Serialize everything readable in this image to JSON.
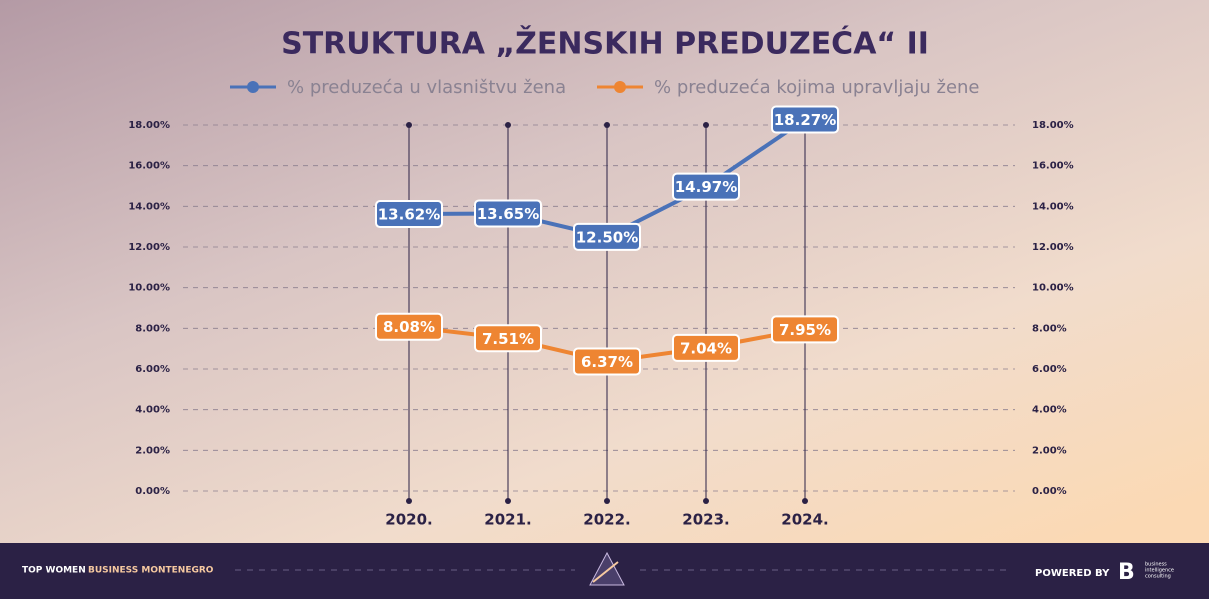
{
  "chart_data": {
    "type": "line",
    "title": "STRUKTURA „ŽENSKIH PREDUZEĆA“ II",
    "categories": [
      "2020.",
      "2021.",
      "2022.",
      "2023.",
      "2024."
    ],
    "series": [
      {
        "name": "% preduzeća u vlasništvu žena",
        "color": "#4a72b8",
        "values": [
          13.62,
          13.65,
          12.5,
          14.97,
          18.27
        ],
        "value_labels": [
          "13.62%",
          "13.65%",
          "12.50%",
          "14.97%",
          "18.27%"
        ]
      },
      {
        "name": "% preduzeća kojima upravljaju žene",
        "color": "#ee8532",
        "values": [
          8.08,
          7.51,
          6.37,
          7.04,
          7.95
        ],
        "value_labels": [
          "8.08%",
          "7.51%",
          "6.37%",
          "7.04%",
          "7.95%"
        ]
      }
    ],
    "ylim": [
      0,
      18
    ],
    "yticks": [
      {
        "value": 0,
        "label": "0.00%"
      },
      {
        "value": 2,
        "label": "2.00%"
      },
      {
        "value": 4,
        "label": "4.00%"
      },
      {
        "value": 6,
        "label": "6.00%"
      },
      {
        "value": 8,
        "label": "8.00%"
      },
      {
        "value": 10,
        "label": "10.00%"
      },
      {
        "value": 12,
        "label": "12.00%"
      },
      {
        "value": 14,
        "label": "14.00%"
      },
      {
        "value": 16,
        "label": "16.00%"
      },
      {
        "value": 18,
        "label": "18.00%"
      }
    ],
    "grid": true
  },
  "footer": {
    "brand_first": "TOP WOMEN",
    "brand_second": "BUSINESS MONTENEGRO",
    "powered": "POWERED BY",
    "logo_text": [
      "business",
      "intelligence",
      "consulting"
    ]
  }
}
